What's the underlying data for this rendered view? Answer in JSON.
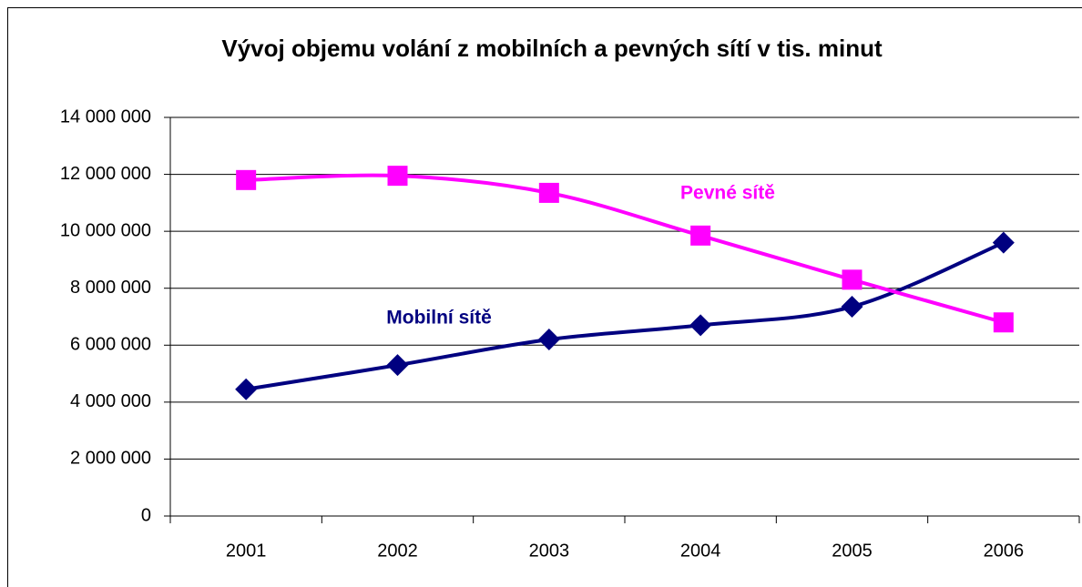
{
  "chart_data": {
    "type": "line",
    "title": "Vývoj objemu volání z mobilních a pevných sítí v tis. minut",
    "categories": [
      "2001",
      "2002",
      "2003",
      "2004",
      "2005",
      "2006"
    ],
    "series": [
      {
        "name": "Mobilní sítě",
        "color": "#000080",
        "marker": "diamond",
        "values": [
          4450000,
          5300000,
          6200000,
          6700000,
          7350000,
          9600000
        ]
      },
      {
        "name": "Pevné sítě",
        "color": "#ff00ff",
        "marker": "square",
        "values": [
          11800000,
          11950000,
          11350000,
          9850000,
          8300000,
          6800000
        ]
      }
    ],
    "ylim": [
      0,
      14000000
    ],
    "yticks": [
      0,
      {
        "value": 2000000,
        "label": "2 000 000"
      },
      {
        "value": 4000000,
        "label": "4 000 000"
      },
      {
        "value": 6000000,
        "label": "6 000 000"
      },
      {
        "value": 8000000,
        "label": "8 000 000"
      },
      {
        "value": 10000000,
        "label": "10 000 000"
      },
      {
        "value": 12000000,
        "label": "12 000 000"
      },
      {
        "value": 14000000,
        "label": "14 000 000"
      }
    ],
    "grid": true,
    "smooth": true
  }
}
